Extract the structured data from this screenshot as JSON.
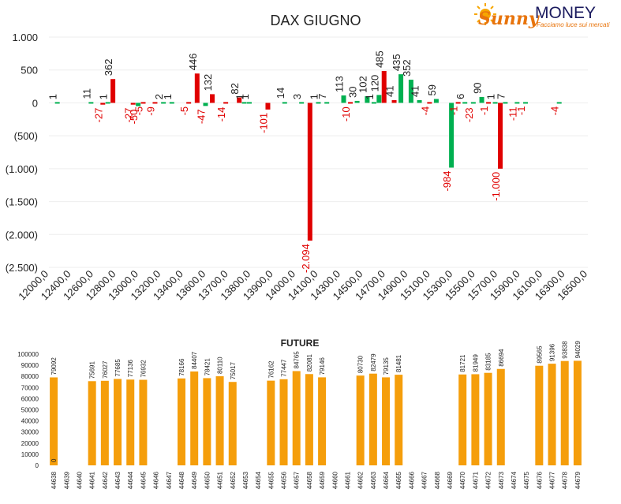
{
  "brand": {
    "word1": "Sunny",
    "word2": "MONEY",
    "tagline": "Facciamo luce sui mercati"
  },
  "colors": {
    "positive": "#00b050",
    "negative": "#e00000",
    "future_bar": "#f59e0b",
    "text": "#222222",
    "neg_label": "#e00000"
  },
  "chart_data": [
    {
      "type": "bar",
      "title": "DAX GIUGNO",
      "categories": [
        "12000,0",
        "12400,0",
        "12600,0",
        "12800,0",
        "13000,0",
        "13200,0",
        "13400,0",
        "13600,0",
        "13700,0",
        "13800,0",
        "13900,0",
        "14000,0",
        "14100,0",
        "14300,0",
        "14500,0",
        "14700,0",
        "14900,0",
        "15100,0",
        "15300,0",
        "15500,0",
        "15700,0",
        "15900,0",
        "16100,0",
        "16300,0",
        "16500,0"
      ],
      "ylim": [
        -2500,
        1000
      ],
      "yticks": [
        {
          "v": 1000,
          "label": "1.000"
        },
        {
          "v": 500,
          "label": "500"
        },
        {
          "v": 0,
          "label": "0"
        },
        {
          "v": -500,
          "label": "(500)"
        },
        {
          "v": -1000,
          "label": "(1.000)"
        },
        {
          "v": -1500,
          "label": "(1.500)"
        },
        {
          "v": -2000,
          "label": "(2.000)"
        },
        {
          "v": -2500,
          "label": "(2.500)"
        }
      ],
      "bars": [
        {
          "slot": 0.5,
          "value": 1,
          "color": "green"
        },
        {
          "slot": 2.5,
          "value": 11,
          "color": "green"
        },
        {
          "slot": 3.2,
          "value": -27,
          "color": "red"
        },
        {
          "slot": 3.5,
          "value": 1,
          "color": "green"
        },
        {
          "slot": 3.8,
          "value": 362,
          "color": "red"
        },
        {
          "slot": 5.0,
          "value": -27,
          "color": "red"
        },
        {
          "slot": 5.3,
          "value": -50,
          "color": "green"
        },
        {
          "slot": 5.6,
          "value": -5,
          "color": "red"
        },
        {
          "slot": 6.3,
          "value": -9,
          "color": "red"
        },
        {
          "slot": 6.8,
          "value": 2,
          "color": "green"
        },
        {
          "slot": 7.3,
          "value": 1,
          "color": "green"
        },
        {
          "slot": 8.3,
          "value": -5,
          "color": "red"
        },
        {
          "slot": 8.8,
          "value": 446,
          "color": "red"
        },
        {
          "slot": 9.3,
          "value": -47,
          "color": "green"
        },
        {
          "slot": 9.7,
          "value": 132,
          "color": "red"
        },
        {
          "slot": 10.5,
          "value": -14,
          "color": "red"
        },
        {
          "slot": 11.3,
          "value": 82,
          "color": "red"
        },
        {
          "slot": 11.6,
          "value": 1,
          "color": "green"
        },
        {
          "slot": 11.9,
          "value": 1,
          "color": "green"
        },
        {
          "slot": 13.0,
          "value": -101,
          "color": "red"
        },
        {
          "slot": 14.0,
          "value": 14,
          "color": "green"
        },
        {
          "slot": 15.0,
          "value": 3,
          "color": "green"
        },
        {
          "slot": 15.5,
          "value": -2094,
          "color": "red"
        },
        {
          "slot": 16.0,
          "value": 1,
          "color": "green"
        },
        {
          "slot": 16.5,
          "value": 7,
          "color": "green"
        },
        {
          "slot": 17.5,
          "value": 113,
          "color": "green"
        },
        {
          "slot": 17.9,
          "value": -10,
          "color": "red"
        },
        {
          "slot": 18.3,
          "value": 30,
          "color": "green"
        },
        {
          "slot": 18.9,
          "value": 102,
          "color": "green"
        },
        {
          "slot": 19.3,
          "value": 1,
          "color": "green"
        },
        {
          "slot": 19.6,
          "value": 120,
          "color": "green"
        },
        {
          "slot": 19.9,
          "value": 485,
          "color": "red"
        },
        {
          "slot": 20.5,
          "value": 41,
          "color": "red"
        },
        {
          "slot": 20.9,
          "value": 435,
          "color": "green"
        },
        {
          "slot": 21.5,
          "value": 352,
          "color": "green"
        },
        {
          "slot": 22.0,
          "value": 41,
          "color": "green"
        },
        {
          "slot": 22.6,
          "value": -4,
          "color": "red"
        },
        {
          "slot": 23.0,
          "value": 59,
          "color": "green"
        },
        {
          "slot": 23.9,
          "value": -984,
          "color": "green"
        },
        {
          "slot": 24.3,
          "value": -1,
          "color": "red"
        },
        {
          "slot": 24.7,
          "value": 6,
          "color": "green"
        },
        {
          "slot": 25.2,
          "value": -23,
          "color": "green"
        },
        {
          "slot": 25.7,
          "value": 90,
          "color": "green"
        },
        {
          "slot": 26.1,
          "value": -1,
          "color": "red"
        },
        {
          "slot": 26.5,
          "value": 1,
          "color": "green"
        },
        {
          "slot": 26.8,
          "value": -1000,
          "color": "red"
        },
        {
          "slot": 27.1,
          "value": 7,
          "color": "green"
        },
        {
          "slot": 27.8,
          "value": -11,
          "color": "green"
        },
        {
          "slot": 28.3,
          "value": -1,
          "color": "green"
        },
        {
          "slot": 30.3,
          "value": -4,
          "color": "green"
        }
      ],
      "slot_count": 32
    },
    {
      "type": "bar",
      "title": "FUTURE",
      "ylim": [
        0,
        100000
      ],
      "yticks": [
        0,
        10000,
        20000,
        30000,
        40000,
        50000,
        60000,
        70000,
        80000,
        90000,
        100000
      ],
      "categories": [
        "44638",
        "44639",
        "44640",
        "44641",
        "44642",
        "44643",
        "44644",
        "44645",
        "44646",
        "44647",
        "44648",
        "44649",
        "44650",
        "44651",
        "44652",
        "44653",
        "44654",
        "44655",
        "44656",
        "44657",
        "44658",
        "44659",
        "44660",
        "44661",
        "44662",
        "44663",
        "44664",
        "44665",
        "44666",
        "44667",
        "44668",
        "44669",
        "44670",
        "44671",
        "44672",
        "44673",
        "44674",
        "44675",
        "44676",
        "44677",
        "44678",
        "44679"
      ],
      "values": [
        79092,
        null,
        null,
        75691,
        76027,
        77685,
        77136,
        76932,
        null,
        null,
        78166,
        84407,
        78421,
        80110,
        75017,
        null,
        null,
        76162,
        77447,
        84765,
        82081,
        79146,
        null,
        null,
        80730,
        82479,
        79135,
        81481,
        null,
        null,
        null,
        null,
        81721,
        81949,
        83185,
        86694,
        null,
        null,
        89565,
        91396,
        93838,
        94029
      ],
      "extra_labels": [
        {
          "index": 0,
          "label": "0"
        }
      ]
    }
  ]
}
